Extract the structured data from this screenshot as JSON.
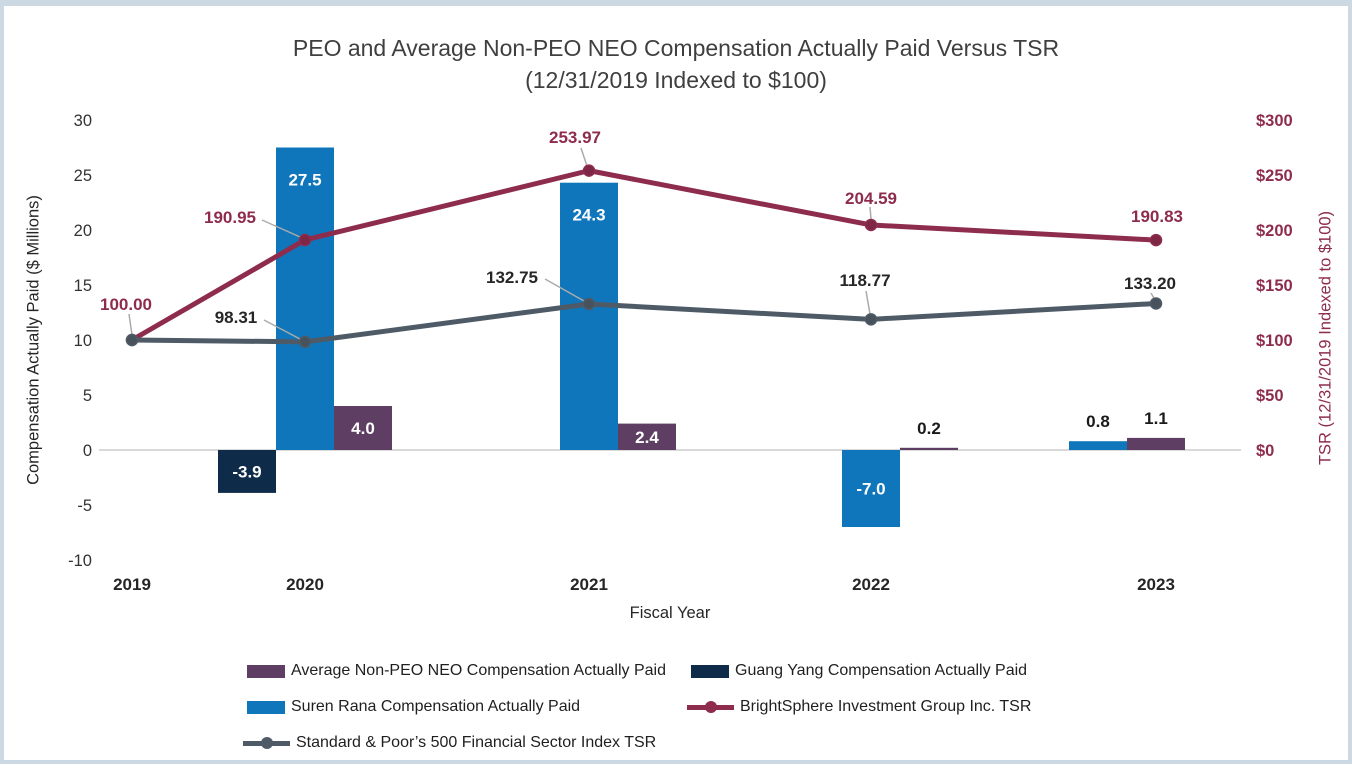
{
  "title": {
    "line1": "PEO and Average Non-PEO NEO Compensation Actually Paid Versus TSR",
    "line2": "(12/31/2019 Indexed to $100)"
  },
  "colors": {
    "guang_navy": "#0E2B4A",
    "suren_blue": "#0F76BC",
    "avg_purple": "#5E3F63",
    "bsig_maroon": "#8E2C4E",
    "sp_gray": "#4E5B66",
    "zero_line": "#D9D9D9",
    "leader_line": "#ABABAB",
    "tick_text": "#333333",
    "dark_text": "#262626"
  },
  "chart_data": {
    "type": "combo-bar-line",
    "x_categories": [
      "2019",
      "2020",
      "2021",
      "2022",
      "2023"
    ],
    "xlabel": "Fiscal Year",
    "left_axis": {
      "label": "Compensation Actually Paid ($ Millions)",
      "ticks": [
        30,
        25,
        20,
        15,
        10,
        5,
        0,
        -5,
        -10
      ],
      "range": [
        -10,
        30
      ],
      "grid": "zero-line-only"
    },
    "right_axis": {
      "label": "TSR (12/31/2019 Indexed to $100)",
      "ticks": [
        "$300",
        "$250",
        "$200",
        "$150",
        "$100",
        "$50",
        "$0"
      ],
      "range": [
        0,
        300
      ]
    },
    "bar_series": [
      {
        "name": "Guang Yang Compensation Actually Paid",
        "color_key": "guang_navy",
        "values": {
          "2020": -3.9
        }
      },
      {
        "name": "Suren Rana Compensation Actually Paid",
        "color_key": "suren_blue",
        "values": {
          "2020": 27.5,
          "2021": 24.3,
          "2022": -7.0,
          "2023": 0.8
        }
      },
      {
        "name": "Average Non-PEO NEO Compensation Actually Paid",
        "color_key": "avg_purple",
        "values": {
          "2020": 4.0,
          "2021": 2.4,
          "2022": 0.2,
          "2023": 1.1
        }
      }
    ],
    "line_series": [
      {
        "name": "BrightSphere Investment Group Inc. TSR",
        "color_key": "bsig_maroon",
        "marker_color": "#7E2645",
        "label_color": "#8E2C4E",
        "values": {
          "2019": 100.0,
          "2020": 190.95,
          "2021": 253.97,
          "2022": 204.59,
          "2023": 190.83
        }
      },
      {
        "name": "Standard & Poor’s 500 Financial Sector Index TSR",
        "color_key": "sp_gray",
        "marker_color": "#47525C",
        "label_color": "#262626",
        "values": {
          "2019": 100.0,
          "2020": 98.31,
          "2021": 132.75,
          "2022": 118.77,
          "2023": 133.2
        }
      }
    ],
    "legend_position": "bottom"
  },
  "legend": {
    "items": [
      {
        "label": "Average Non-PEO NEO Compensation Actually Paid",
        "swatch": "avg_purple",
        "kind": "bar"
      },
      {
        "label": "Guang Yang Compensation Actually Paid",
        "swatch": "guang_navy",
        "kind": "bar"
      },
      {
        "label": "Suren Rana Compensation Actually Paid",
        "swatch": "suren_blue",
        "kind": "bar"
      },
      {
        "label": "BrightSphere Investment Group Inc. TSR",
        "swatch": "bsig_maroon",
        "kind": "line"
      },
      {
        "label": "Standard & Poor’s 500 Financial Sector Index TSR",
        "swatch": "sp_gray",
        "kind": "line"
      }
    ]
  }
}
